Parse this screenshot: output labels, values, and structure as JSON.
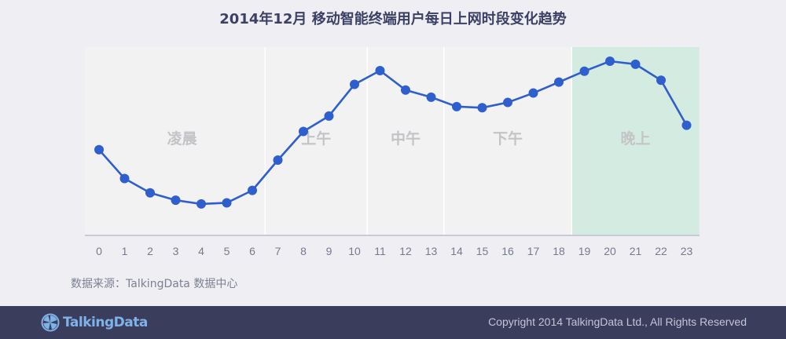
{
  "header": {
    "title": "2014年12月 移动智能终端用户每日上网时段变化趋势"
  },
  "chart_data": {
    "type": "line",
    "title": "2014年12月 移动智能终端用户每日上网时段变化趋势",
    "xlabel": "",
    "ylabel": "",
    "x": [
      0,
      1,
      2,
      3,
      4,
      5,
      6,
      7,
      8,
      9,
      10,
      11,
      12,
      13,
      14,
      15,
      16,
      17,
      18,
      19,
      20,
      21,
      22,
      23
    ],
    "series": [
      {
        "values": [
          45.5,
          30.2,
          22.6,
          18.7,
          16.7,
          17.3,
          23.9,
          40.0,
          55.2,
          63.4,
          80.2,
          87.5,
          77.2,
          73.4,
          68.4,
          67.8,
          70.6,
          75.6,
          81.4,
          87.2,
          92.5,
          90.9,
          82.4,
          58.5
        ]
      }
    ],
    "ylim": [
      0,
      100
    ],
    "grid": false,
    "periods": [
      {
        "label": "凌晨",
        "from": 0,
        "to": 6.5
      },
      {
        "label": "上午",
        "from": 6.5,
        "to": 10.5
      },
      {
        "label": "中午",
        "from": 10.5,
        "to": 13.5
      },
      {
        "label": "下午",
        "from": 13.5,
        "to": 18.5
      },
      {
        "label": "晚上",
        "from": 18.5,
        "to": 23.5
      }
    ],
    "colors": {
      "line": "#2f5fcd",
      "highlight": "#d4ebe1",
      "plot_bg": "#f2f2f3",
      "period_label": "#c4c4c8"
    }
  },
  "source": {
    "text": "数据来源：TalkingData 数据中心"
  },
  "footer": {
    "logo_text": "TalkingData",
    "logo_icon": "talkingdata-logo-icon",
    "copyright": "Copyright 2014 TalkingData Ltd., All Rights Reserved"
  }
}
